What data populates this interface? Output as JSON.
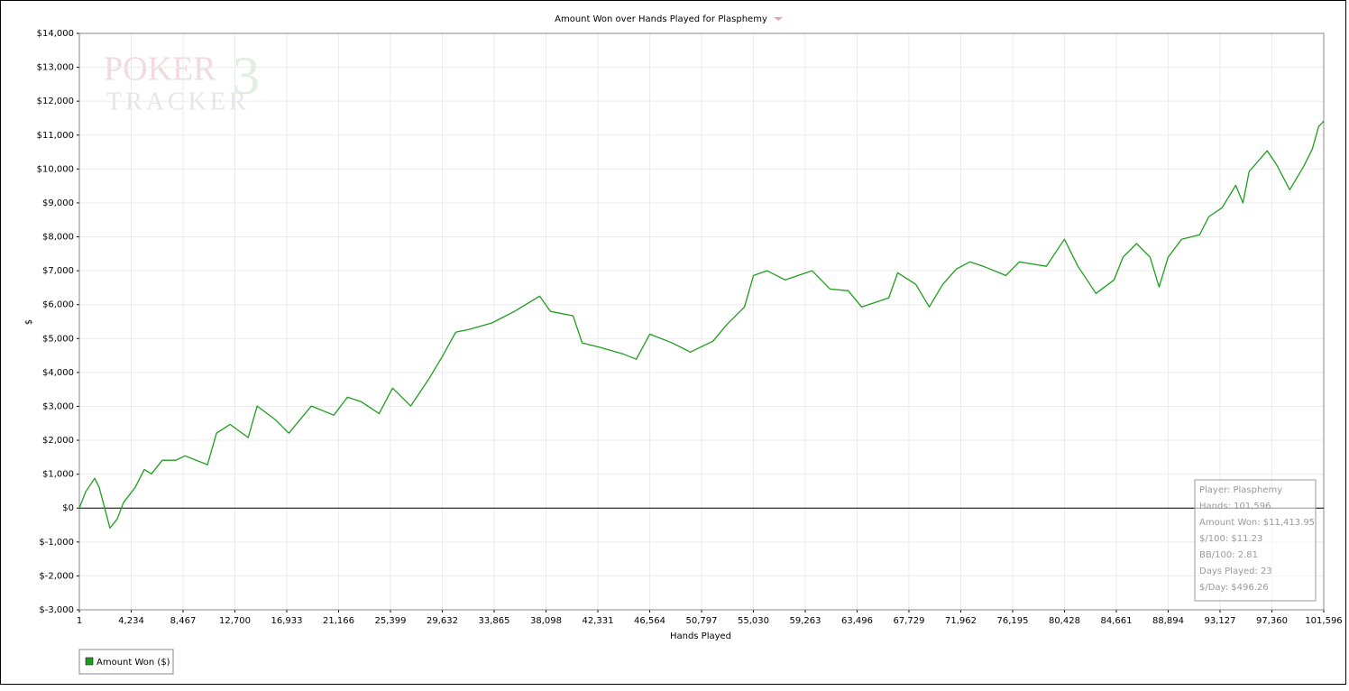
{
  "chart_data": {
    "type": "line",
    "title": "Amount Won over Hands Played for Plasphemy",
    "watermark": [
      "POKER",
      "TRACKER",
      "3"
    ],
    "x_label": "Hands Played",
    "y_label": "$",
    "xlim": [
      1,
      101596
    ],
    "ylim": [
      -3000,
      14000
    ],
    "grid": true,
    "legend": "bottom-left",
    "xticks": [
      1,
      {
        "value": 4234,
        "label": "4,234"
      },
      {
        "value": 8467,
        "label": "8,467"
      },
      {
        "value": 12700,
        "label": "12,700"
      },
      {
        "value": 16933,
        "label": "16,933"
      },
      {
        "value": 21166,
        "label": "21,166"
      },
      {
        "value": 25399,
        "label": "25,399"
      },
      {
        "value": 29632,
        "label": "29,632"
      },
      {
        "value": 33865,
        "label": "33,865"
      },
      {
        "value": 38098,
        "label": "38,098"
      },
      {
        "value": 42331,
        "label": "42,331"
      },
      {
        "value": 46564,
        "label": "46,564"
      },
      {
        "value": 50797,
        "label": "50,797"
      },
      {
        "value": 55030,
        "label": "55,030"
      },
      {
        "value": 59263,
        "label": "59,263"
      },
      {
        "value": 63496,
        "label": "63,496"
      },
      {
        "value": 67729,
        "label": "67,729"
      },
      {
        "value": 71962,
        "label": "71,962"
      },
      {
        "value": 76195,
        "label": "76,195"
      },
      {
        "value": 80428,
        "label": "80,428"
      },
      {
        "value": 84661,
        "label": "84,661"
      },
      {
        "value": 88894,
        "label": "88,894"
      },
      {
        "value": 93127,
        "label": "93,127"
      },
      {
        "value": 97360,
        "label": "97,360"
      },
      {
        "value": 101596,
        "label": "101,596"
      }
    ],
    "yticks": [
      {
        "value": 14000,
        "label": "$14,000"
      },
      {
        "value": 13000,
        "label": "$13,000"
      },
      {
        "value": 12000,
        "label": "$12,000"
      },
      {
        "value": 11000,
        "label": "$11,000"
      },
      {
        "value": 10000,
        "label": "$10,000"
      },
      {
        "value": 9000,
        "label": "$9,000"
      },
      {
        "value": 8000,
        "label": "$8,000"
      },
      {
        "value": 7000,
        "label": "$7,000"
      },
      {
        "value": 6000,
        "label": "$6,000"
      },
      {
        "value": 5000,
        "label": "$5,000"
      },
      {
        "value": 4000,
        "label": "$4,000"
      },
      {
        "value": 3000,
        "label": "$3,000"
      },
      {
        "value": 2000,
        "label": "$2,000"
      },
      {
        "value": 1000,
        "label": "$1,000"
      },
      {
        "value": 0,
        "label": "$0"
      },
      {
        "value": -1000,
        "label": "$-1,000"
      },
      {
        "value": -2000,
        "label": "$-2,000"
      },
      {
        "value": -3000,
        "label": "$-3,000"
      }
    ],
    "x": [
      1,
      516,
      1250,
      1620,
      2210,
      2500,
      3090,
      3600,
      4560,
      5300,
      5890,
      6770,
      7880,
      8620,
      10460,
      11200,
      12300,
      13780,
      14520,
      15990,
      17100,
      18940,
      20780,
      21890,
      22990,
      24470,
      25580,
      27050,
      28520,
      29630,
      30730,
      31840,
      33680,
      35520,
      37580,
      38470,
      40310,
      41050,
      42520,
      44360,
      45470,
      46570,
      48410,
      49880,
      51720,
      52830,
      54300,
      55040,
      56140,
      57620,
      59820,
      61290,
      62770,
      63870,
      66080,
      66810,
      68290,
      69390,
      70490,
      71600,
      72700,
      73800,
      75640,
      76740,
      78950,
      80420,
      81530,
      83000,
      84470,
      85210,
      86310,
      87420,
      88150,
      88890,
      89990,
      91460,
      92200,
      93300,
      94410,
      95000,
      95510,
      96980,
      97720,
      98820,
      99930,
      100660,
      101180,
      101596
    ],
    "series": [
      {
        "name": "Amount Won ($)",
        "color": "#1e9e1e",
        "values": [
          0,
          480,
          880,
          610,
          -190,
          -590,
          -320,
          160,
          610,
          1140,
          1010,
          1410,
          1410,
          1540,
          1280,
          2210,
          2470,
          2080,
          3010,
          2610,
          2210,
          3010,
          2740,
          3270,
          3140,
          2790,
          3540,
          3010,
          3800,
          4470,
          5190,
          5270,
          5460,
          5800,
          6250,
          5800,
          5670,
          4870,
          4740,
          4550,
          4390,
          5130,
          4870,
          4600,
          4920,
          5400,
          5930,
          6860,
          7000,
          6730,
          7000,
          6460,
          6410,
          5930,
          6200,
          6940,
          6600,
          5930,
          6600,
          7050,
          7260,
          7130,
          6860,
          7260,
          7130,
          7930,
          7130,
          6330,
          6730,
          7400,
          7800,
          7400,
          6520,
          7400,
          7930,
          8060,
          8590,
          8860,
          9520,
          9000,
          9930,
          10540,
          10140,
          9390,
          10060,
          10590,
          11250,
          11414
        ]
      }
    ],
    "stats": [
      "Player: Plasphemy",
      "Hands: 101,596",
      "Amount Won: $11,413.95",
      "$/100: $11.23",
      "BB/100: 2.81",
      "Days Played: 23",
      "$/Day: $496.26"
    ]
  }
}
